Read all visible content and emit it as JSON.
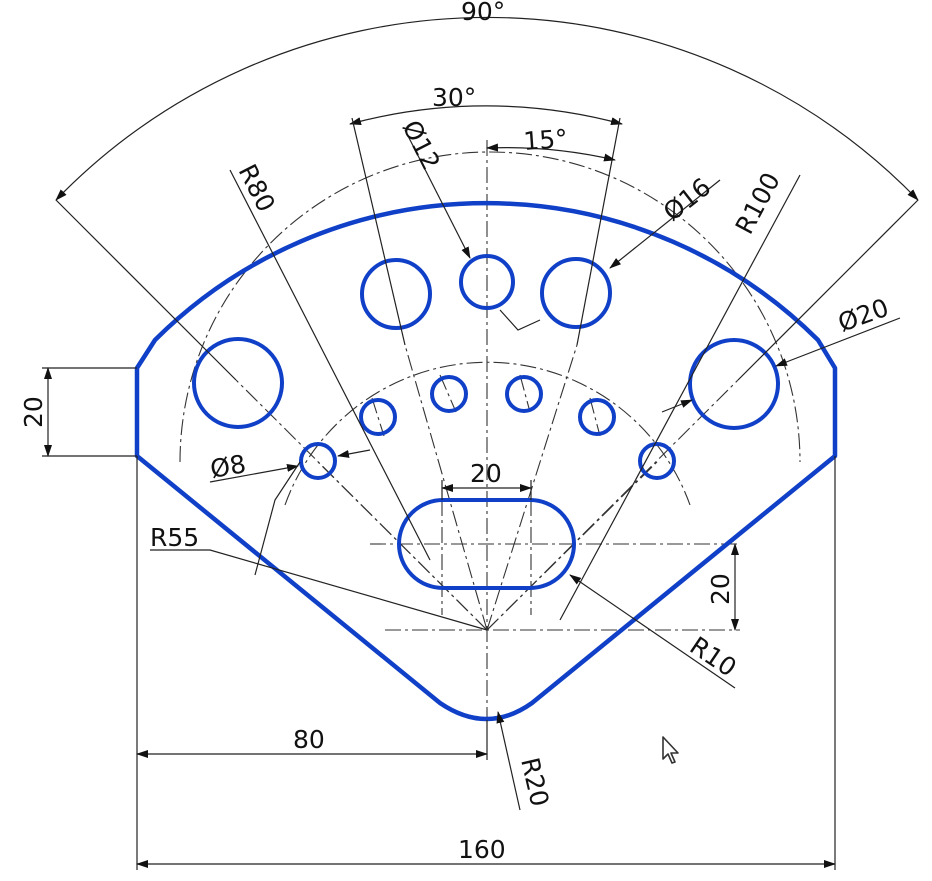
{
  "dimensions": {
    "angle_overall": "90°",
    "angle_holes": "30°",
    "angle_half": "15°",
    "radius_outer": "R100",
    "radius_mid": "R80",
    "radius_inner": "R55",
    "radius_slot": "R10",
    "radius_bottom": "R20",
    "dia_small_top": "Ø12",
    "dia_upper": "Ø16",
    "dia_large": "Ø20",
    "dia_small": "Ø8",
    "slot_length": "20",
    "left_step": "20",
    "slot_height": "20",
    "half_width": "80",
    "total_width": "160"
  },
  "colors": {
    "outline": "#1040c8",
    "lines": "#222222"
  },
  "cursor": {
    "icon": "mouse-pointer-icon"
  }
}
